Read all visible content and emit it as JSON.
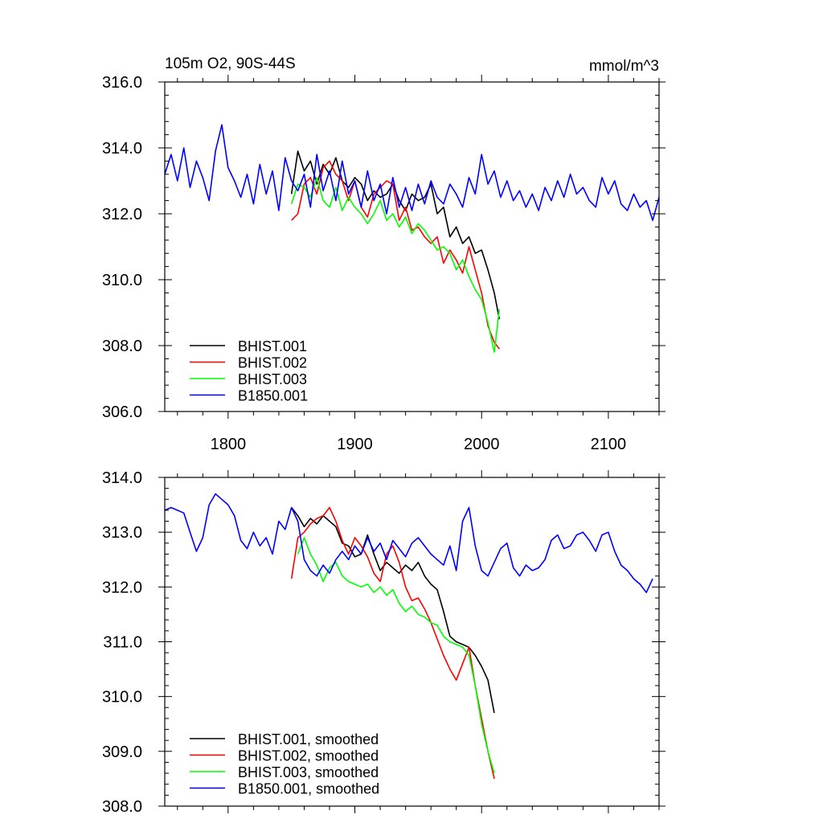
{
  "chart_data": [
    {
      "type": "line",
      "title": "105m O2, 90S-44S",
      "units_label": "mmol/m^3",
      "xlim": [
        1750,
        2140
      ],
      "ylim": [
        306,
        316
      ],
      "x_ticks": [
        1800,
        1900,
        2000,
        2100
      ],
      "y_ticks": [
        306,
        308,
        310,
        312,
        314,
        316
      ],
      "y_tick_labels": [
        "306.0",
        "308.0",
        "310.0",
        "312.0",
        "314.0",
        "316.0"
      ],
      "grid": false,
      "legend": "bottom-left",
      "series": [
        {
          "name": "BHIST.001",
          "color": "#000000",
          "x": [
            1850,
            1855,
            1860,
            1865,
            1870,
            1875,
            1880,
            1885,
            1890,
            1895,
            1900,
            1905,
            1910,
            1915,
            1920,
            1925,
            1930,
            1935,
            1940,
            1945,
            1950,
            1955,
            1960,
            1965,
            1970,
            1975,
            1980,
            1985,
            1990,
            1995,
            2000,
            2005,
            2010,
            2014
          ],
          "y": [
            312.6,
            313.9,
            313.3,
            313.6,
            312.9,
            313.5,
            313.2,
            313.7,
            313.0,
            312.8,
            313.1,
            312.9,
            312.4,
            312.7,
            312.5,
            312.6,
            312.9,
            312.4,
            312.1,
            312.6,
            312.4,
            312.5,
            312.9,
            312.0,
            312.2,
            311.3,
            311.6,
            311.1,
            311.3,
            310.8,
            310.9,
            310.3,
            309.6,
            308.8
          ]
        },
        {
          "name": "BHIST.002",
          "color": "#ff0000",
          "x": [
            1850,
            1855,
            1860,
            1865,
            1870,
            1875,
            1880,
            1885,
            1890,
            1895,
            1900,
            1905,
            1910,
            1915,
            1920,
            1925,
            1930,
            1935,
            1940,
            1945,
            1950,
            1955,
            1960,
            1965,
            1970,
            1975,
            1980,
            1985,
            1990,
            1995,
            2000,
            2005,
            2010,
            2014
          ],
          "y": [
            311.8,
            312.0,
            312.9,
            313.1,
            312.6,
            313.4,
            313.6,
            313.2,
            313.0,
            312.4,
            313.0,
            312.2,
            311.9,
            312.6,
            312.8,
            313.0,
            312.9,
            311.8,
            312.2,
            311.5,
            311.6,
            311.3,
            311.1,
            311.3,
            310.5,
            310.9,
            310.6,
            310.2,
            311.0,
            310.3,
            309.6,
            308.6,
            308.1,
            307.9
          ]
        },
        {
          "name": "BHIST.003",
          "color": "#00ff00",
          "x": [
            1850,
            1855,
            1860,
            1865,
            1870,
            1875,
            1880,
            1885,
            1890,
            1895,
            1900,
            1905,
            1910,
            1915,
            1920,
            1925,
            1930,
            1935,
            1940,
            1945,
            1950,
            1955,
            1960,
            1965,
            1970,
            1975,
            1980,
            1985,
            1990,
            1995,
            2000,
            2005,
            2010,
            2014
          ],
          "y": [
            312.3,
            312.9,
            312.8,
            312.5,
            313.1,
            312.4,
            312.2,
            312.8,
            312.1,
            312.5,
            312.2,
            312.0,
            311.7,
            312.0,
            312.4,
            311.8,
            312.0,
            311.6,
            311.9,
            311.4,
            311.7,
            311.5,
            311.2,
            310.9,
            311.0,
            310.8,
            310.3,
            310.6,
            310.1,
            309.7,
            309.4,
            308.7,
            307.8,
            309.1
          ]
        },
        {
          "name": "B1850.001",
          "color": "#0000ff",
          "x": [
            1750,
            1755,
            1760,
            1765,
            1770,
            1775,
            1780,
            1785,
            1790,
            1795,
            1800,
            1805,
            1810,
            1815,
            1820,
            1825,
            1830,
            1835,
            1840,
            1845,
            1850,
            1855,
            1860,
            1865,
            1870,
            1875,
            1880,
            1885,
            1890,
            1895,
            1900,
            1905,
            1910,
            1915,
            1920,
            1925,
            1930,
            1935,
            1940,
            1945,
            1950,
            1955,
            1960,
            1965,
            1970,
            1975,
            1980,
            1985,
            1990,
            1995,
            2000,
            2005,
            2010,
            2015,
            2020,
            2025,
            2030,
            2035,
            2040,
            2045,
            2050,
            2055,
            2060,
            2065,
            2070,
            2075,
            2080,
            2085,
            2090,
            2095,
            2100,
            2105,
            2110,
            2115,
            2120,
            2125,
            2130,
            2135,
            2140
          ],
          "y": [
            313.2,
            313.8,
            313.0,
            314.0,
            312.8,
            313.6,
            313.1,
            312.4,
            313.9,
            314.7,
            313.4,
            313.0,
            312.5,
            313.2,
            312.3,
            313.5,
            312.6,
            313.3,
            312.1,
            313.7,
            313.0,
            312.7,
            313.2,
            312.2,
            313.8,
            312.7,
            313.3,
            312.4,
            313.6,
            312.6,
            313.0,
            312.2,
            313.3,
            312.4,
            312.9,
            312.0,
            313.1,
            312.2,
            312.8,
            312.1,
            312.9,
            312.3,
            313.0,
            312.5,
            312.3,
            312.9,
            312.6,
            312.2,
            313.1,
            312.6,
            313.8,
            312.9,
            313.3,
            312.5,
            313.0,
            312.4,
            312.7,
            312.2,
            312.6,
            312.1,
            312.8,
            312.4,
            313.0,
            312.5,
            313.2,
            312.6,
            312.8,
            312.4,
            312.2,
            313.1,
            312.6,
            313.0,
            312.3,
            312.1,
            312.6,
            312.2,
            312.4,
            311.8,
            312.5
          ]
        }
      ]
    },
    {
      "type": "line",
      "xlim": [
        1750,
        2140
      ],
      "ylim": [
        308,
        314
      ],
      "x_ticks": [
        1800,
        1900,
        2000,
        2100
      ],
      "y_ticks": [
        308,
        309,
        310,
        311,
        312,
        313,
        314
      ],
      "y_tick_labels": [
        "308.0",
        "309.0",
        "310.0",
        "311.0",
        "312.0",
        "313.0",
        "314.0"
      ],
      "grid": false,
      "legend": "bottom-left",
      "series": [
        {
          "name": "BHIST.001, smoothed",
          "color": "#000000",
          "x": [
            1850,
            1855,
            1860,
            1865,
            1870,
            1875,
            1880,
            1885,
            1890,
            1895,
            1900,
            1905,
            1910,
            1915,
            1920,
            1925,
            1930,
            1935,
            1940,
            1945,
            1950,
            1955,
            1960,
            1965,
            1970,
            1975,
            1980,
            1985,
            1990,
            1995,
            2000,
            2005,
            2010
          ],
          "y": [
            313.45,
            313.3,
            313.1,
            313.25,
            313.15,
            313.3,
            313.2,
            313.1,
            312.8,
            312.75,
            312.55,
            312.6,
            312.95,
            312.6,
            312.3,
            312.45,
            312.35,
            312.25,
            312.4,
            312.3,
            312.45,
            312.2,
            312.05,
            311.95,
            311.55,
            311.1,
            311.0,
            310.95,
            310.9,
            310.75,
            310.55,
            310.3,
            309.7
          ]
        },
        {
          "name": "BHIST.002, smoothed",
          "color": "#ff0000",
          "x": [
            1850,
            1855,
            1860,
            1865,
            1870,
            1875,
            1880,
            1885,
            1890,
            1895,
            1900,
            1905,
            1910,
            1915,
            1920,
            1925,
            1930,
            1935,
            1940,
            1945,
            1950,
            1955,
            1960,
            1965,
            1970,
            1975,
            1980,
            1985,
            1990,
            1995,
            2000,
            2005,
            2010
          ],
          "y": [
            312.15,
            312.9,
            313.0,
            313.15,
            313.25,
            313.3,
            313.45,
            313.2,
            312.85,
            312.6,
            312.9,
            312.75,
            312.55,
            312.25,
            312.1,
            312.6,
            312.75,
            312.45,
            312.0,
            311.75,
            311.8,
            311.6,
            311.35,
            311.05,
            310.75,
            310.5,
            310.3,
            310.6,
            310.9,
            310.2,
            309.6,
            309.0,
            308.5
          ]
        },
        {
          "name": "BHIST.003, smoothed",
          "color": "#00ff00",
          "x": [
            1855,
            1860,
            1865,
            1870,
            1875,
            1880,
            1885,
            1890,
            1895,
            1900,
            1905,
            1910,
            1915,
            1920,
            1925,
            1930,
            1935,
            1940,
            1945,
            1950,
            1955,
            1960,
            1965,
            1970,
            1975,
            1980,
            1985,
            1990,
            1995,
            2000,
            2005,
            2010
          ],
          "y": [
            312.6,
            312.9,
            312.6,
            312.4,
            312.1,
            312.35,
            312.45,
            312.2,
            312.1,
            312.05,
            312.0,
            312.05,
            311.9,
            312.0,
            311.85,
            311.95,
            311.7,
            311.55,
            311.65,
            311.5,
            311.45,
            311.35,
            311.3,
            311.1,
            311.0,
            310.95,
            310.9,
            310.75,
            310.2,
            309.5,
            309.0,
            308.6
          ]
        },
        {
          "name": "B1850.001, smoothed",
          "color": "#0000ff",
          "x": [
            1750,
            1755,
            1760,
            1765,
            1770,
            1775,
            1780,
            1785,
            1790,
            1795,
            1800,
            1805,
            1810,
            1815,
            1820,
            1825,
            1830,
            1835,
            1840,
            1845,
            1850,
            1855,
            1860,
            1865,
            1870,
            1875,
            1880,
            1885,
            1890,
            1895,
            1900,
            1905,
            1910,
            1915,
            1920,
            1925,
            1930,
            1935,
            1940,
            1945,
            1950,
            1955,
            1960,
            1965,
            1970,
            1975,
            1980,
            1985,
            1990,
            1995,
            2000,
            2005,
            2010,
            2015,
            2020,
            2025,
            2030,
            2035,
            2040,
            2045,
            2050,
            2055,
            2060,
            2065,
            2070,
            2075,
            2080,
            2085,
            2090,
            2095,
            2100,
            2105,
            2110,
            2115,
            2120,
            2125,
            2130,
            2135
          ],
          "y": [
            313.4,
            313.45,
            313.4,
            313.35,
            313.0,
            312.65,
            312.9,
            313.5,
            313.7,
            313.6,
            313.5,
            313.3,
            312.85,
            312.7,
            313.0,
            312.75,
            312.9,
            312.6,
            313.2,
            313.05,
            313.45,
            313.2,
            312.5,
            312.3,
            312.2,
            312.4,
            312.25,
            312.5,
            312.65,
            312.5,
            312.75,
            312.6,
            312.9,
            312.65,
            312.8,
            312.5,
            312.85,
            312.7,
            312.55,
            312.8,
            312.9,
            312.75,
            312.6,
            312.5,
            312.4,
            312.75,
            312.3,
            313.2,
            313.45,
            312.75,
            312.3,
            312.2,
            312.45,
            312.7,
            312.8,
            312.35,
            312.2,
            312.4,
            312.3,
            312.35,
            312.5,
            312.85,
            312.95,
            312.7,
            312.75,
            312.95,
            313.0,
            312.85,
            312.65,
            312.95,
            313.0,
            312.65,
            312.4,
            312.3,
            312.15,
            312.05,
            311.9,
            312.15
          ]
        }
      ]
    }
  ]
}
